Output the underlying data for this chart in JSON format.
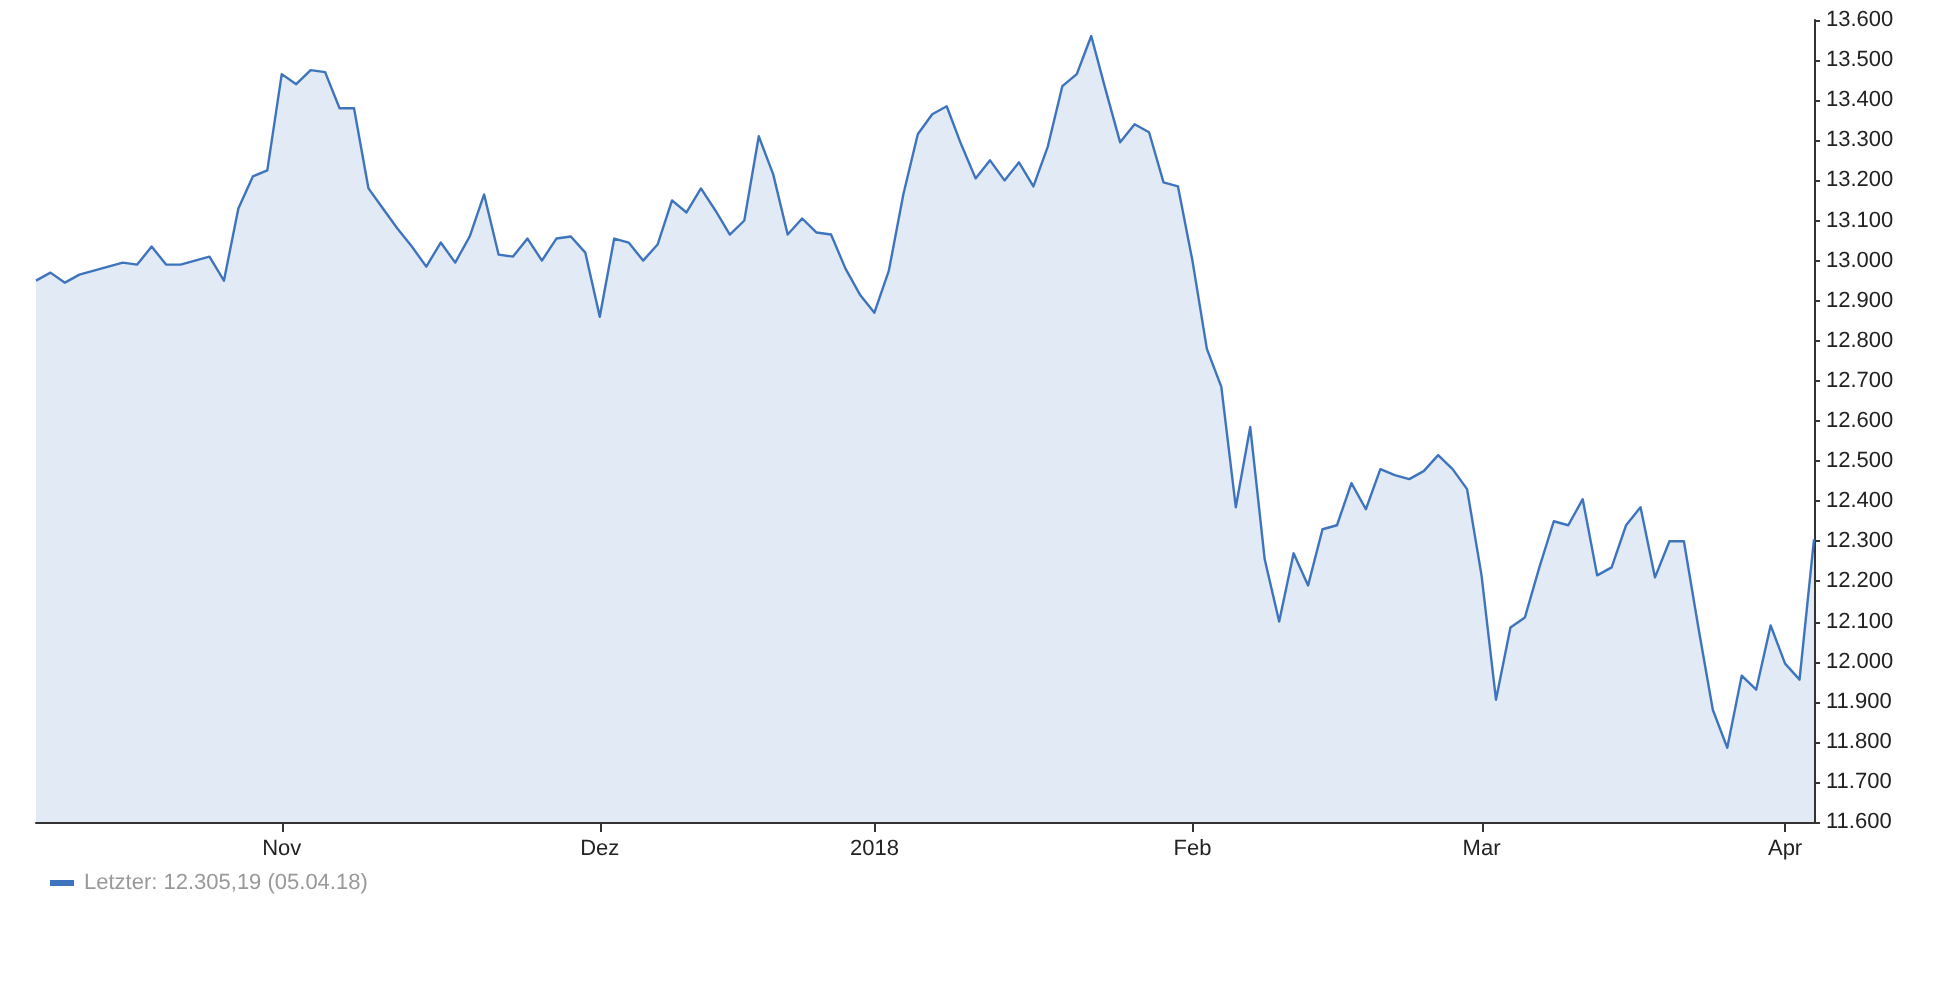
{
  "chart_data": {
    "type": "area",
    "categories": [
      null,
      null,
      null,
      null,
      null,
      null,
      null,
      null,
      null,
      null,
      null,
      null,
      null,
      null,
      null,
      null,
      null,
      "Nov",
      null,
      null,
      null,
      null,
      null,
      null,
      null,
      null,
      null,
      null,
      null,
      null,
      null,
      null,
      null,
      null,
      null,
      null,
      null,
      null,
      null,
      "Dez",
      null,
      null,
      null,
      null,
      null,
      null,
      null,
      null,
      null,
      null,
      null,
      null,
      null,
      null,
      null,
      null,
      null,
      null,
      "2018",
      null,
      null,
      null,
      null,
      null,
      null,
      null,
      null,
      null,
      null,
      null,
      null,
      null,
      null,
      null,
      null,
      null,
      null,
      null,
      null,
      null,
      "Feb",
      null,
      null,
      null,
      null,
      null,
      null,
      null,
      null,
      null,
      null,
      null,
      null,
      null,
      null,
      null,
      null,
      null,
      null,
      null,
      "Mar",
      null,
      null,
      null,
      null,
      null,
      null,
      null,
      null,
      null,
      null,
      null,
      null,
      null,
      null,
      null,
      null,
      null,
      null,
      null,
      null,
      "Apr",
      null,
      null
    ],
    "series": [
      {
        "name": "Letzter: 12.305,19 (05.04.18)",
        "color": "#3d74bd",
        "values": [
          12950,
          12970,
          12945,
          12965,
          12975,
          12985,
          12995,
          12990,
          13035,
          12990,
          12990,
          13000,
          13010,
          12950,
          13130,
          13210,
          13225,
          13465,
          13440,
          13475,
          13470,
          13380,
          13380,
          13180,
          13130,
          13080,
          13035,
          12985,
          13045,
          12995,
          13060,
          13165,
          13015,
          13010,
          13055,
          13000,
          13055,
          13060,
          13020,
          12860,
          13055,
          13045,
          13000,
          13040,
          13150,
          13120,
          13180,
          13125,
          13065,
          13100,
          13310,
          13215,
          13065,
          13105,
          13070,
          13065,
          12980,
          12915,
          12870,
          12975,
          13165,
          13315,
          13365,
          13385,
          13290,
          13205,
          13250,
          13200,
          13245,
          13185,
          13285,
          13435,
          13465,
          13560,
          13425,
          13295,
          13340,
          13320,
          13195,
          13185,
          13000,
          12780,
          12685,
          12385,
          12585,
          12255,
          12100,
          12270,
          12190,
          12330,
          12340,
          12445,
          12380,
          12480,
          12465,
          12455,
          12475,
          12515,
          12480,
          12430,
          12215,
          11905,
          12085,
          12110,
          12235,
          12350,
          12340,
          12405,
          12215,
          12235,
          12340,
          12385,
          12210,
          12300,
          12300,
          12085,
          11880,
          11785,
          11965,
          11930,
          12090,
          11995,
          11955,
          12305
        ]
      }
    ],
    "ylim": [
      11600,
      13600
    ],
    "yticks": [
      {
        "value": 11600,
        "label": "11.600"
      },
      {
        "value": 11700,
        "label": "11.700"
      },
      {
        "value": 11800,
        "label": "11.800"
      },
      {
        "value": 11900,
        "label": "11.900"
      },
      {
        "value": 12000,
        "label": "12.000"
      },
      {
        "value": 12100,
        "label": "12.100"
      },
      {
        "value": 12200,
        "label": "12.200"
      },
      {
        "value": 12300,
        "label": "12.300"
      },
      {
        "value": 12400,
        "label": "12.400"
      },
      {
        "value": 12500,
        "label": "12.500"
      },
      {
        "value": 12600,
        "label": "12.600"
      },
      {
        "value": 12700,
        "label": "12.700"
      },
      {
        "value": 12800,
        "label": "12.800"
      },
      {
        "value": 12900,
        "label": "12.900"
      },
      {
        "value": 13000,
        "label": "13.000"
      },
      {
        "value": 13100,
        "label": "13.100"
      },
      {
        "value": 13200,
        "label": "13.200"
      },
      {
        "value": 13300,
        "label": "13.300"
      },
      {
        "value": 13400,
        "label": "13.400"
      },
      {
        "value": 13500,
        "label": "13.500"
      },
      {
        "value": 13600,
        "label": "13.600"
      }
    ],
    "grid": false,
    "legend": "bottom left",
    "marker": "none",
    "line_style": "solid"
  }
}
